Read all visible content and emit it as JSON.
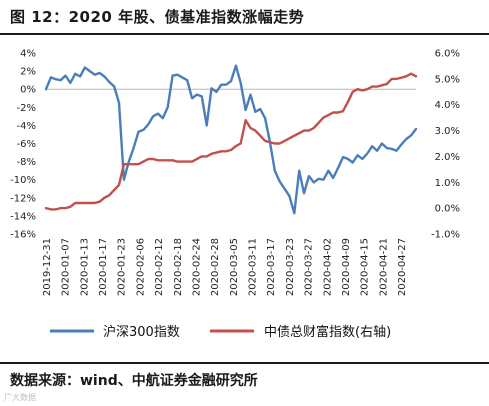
{
  "title": "图 12：2020 年股、债基准指数涨幅走势",
  "source": "数据来源：wind、中航证券金融研究所",
  "watermark": "广大数据",
  "chart_data": {
    "type": "line",
    "left_axis": {
      "ticks": [
        "4%",
        "2%",
        "0%",
        "-2%",
        "-4%",
        "-6%",
        "-8%",
        "-10%",
        "-12%",
        "-14%",
        "-16%"
      ],
      "ylim": [
        -16,
        4
      ]
    },
    "right_axis": {
      "ticks": [
        "6.0%",
        "5.0%",
        "4.0%",
        "3.0%",
        "2.0%",
        "1.0%",
        "0.0%",
        "-1.0%"
      ],
      "ylim": [
        -1,
        6
      ]
    },
    "x_tick_labels": [
      "2019-12-31",
      "2020-01-07",
      "2020-01-13",
      "2020-01-17",
      "2020-01-23",
      "2020-02-06",
      "2020-02-12",
      "2020-02-18",
      "2020-02-24",
      "2020-02-28",
      "2020-03-05",
      "2020-03-11",
      "2020-03-17",
      "2020-03-23",
      "2020-03-27",
      "2020-04-02",
      "2020-04-09",
      "2020-04-15",
      "2020-04-21",
      "2020-04-27"
    ],
    "grid": false,
    "legend_position": "bottom",
    "series": [
      {
        "name": "沪深300指数",
        "color": "#4a7ebb",
        "axis": "left",
        "values": [
          0,
          1.3,
          1.1,
          1.0,
          1.5,
          0.7,
          1.7,
          1.4,
          2.4,
          2.0,
          1.6,
          1.8,
          1.4,
          0.8,
          0.3,
          -1.5,
          -10.0,
          -8.0,
          -6.5,
          -4.7,
          -4.5,
          -3.9,
          -3.0,
          -2.7,
          -3.2,
          -2.0,
          1.5,
          1.6,
          1.3,
          1.0,
          -1.0,
          -0.6,
          -0.8,
          -4.0,
          0.1,
          -0.3,
          0.5,
          0.5,
          0.9,
          2.6,
          0.7,
          -2.3,
          -0.6,
          -2.5,
          -2.2,
          -3.2,
          -5.8,
          -9.0,
          -10.2,
          -11.0,
          -11.8,
          -13.7,
          -9.0,
          -11.5,
          -9.6,
          -10.3,
          -9.9,
          -10.0,
          -9.0,
          -9.8,
          -8.7,
          -7.5,
          -7.7,
          -8.1,
          -7.3,
          -7.7,
          -7.1,
          -6.3,
          -6.8,
          -6.0,
          -6.5,
          -6.6,
          -6.8,
          -6.1,
          -5.5,
          -5.1,
          -4.4
        ]
      },
      {
        "name": "中债总财富指数(右轴)",
        "color": "#c0504d",
        "axis": "right",
        "values": [
          0.0,
          -0.05,
          -0.05,
          0.0,
          0.0,
          0.05,
          0.2,
          0.2,
          0.2,
          0.2,
          0.2,
          0.25,
          0.4,
          0.5,
          0.7,
          0.9,
          1.7,
          1.7,
          1.7,
          1.7,
          1.8,
          1.9,
          1.9,
          1.85,
          1.85,
          1.85,
          1.85,
          1.8,
          1.8,
          1.8,
          1.8,
          1.9,
          2.0,
          2.0,
          2.1,
          2.15,
          2.2,
          2.2,
          2.25,
          2.4,
          2.5,
          3.4,
          3.1,
          3.0,
          2.8,
          2.6,
          2.55,
          2.5,
          2.5,
          2.6,
          2.7,
          2.8,
          2.9,
          3.0,
          3.0,
          3.1,
          3.3,
          3.5,
          3.6,
          3.7,
          3.7,
          3.75,
          4.1,
          4.5,
          4.6,
          4.55,
          4.6,
          4.7,
          4.7,
          4.75,
          4.8,
          5.0,
          5.0,
          5.05,
          5.1,
          5.2,
          5.1
        ]
      }
    ]
  }
}
